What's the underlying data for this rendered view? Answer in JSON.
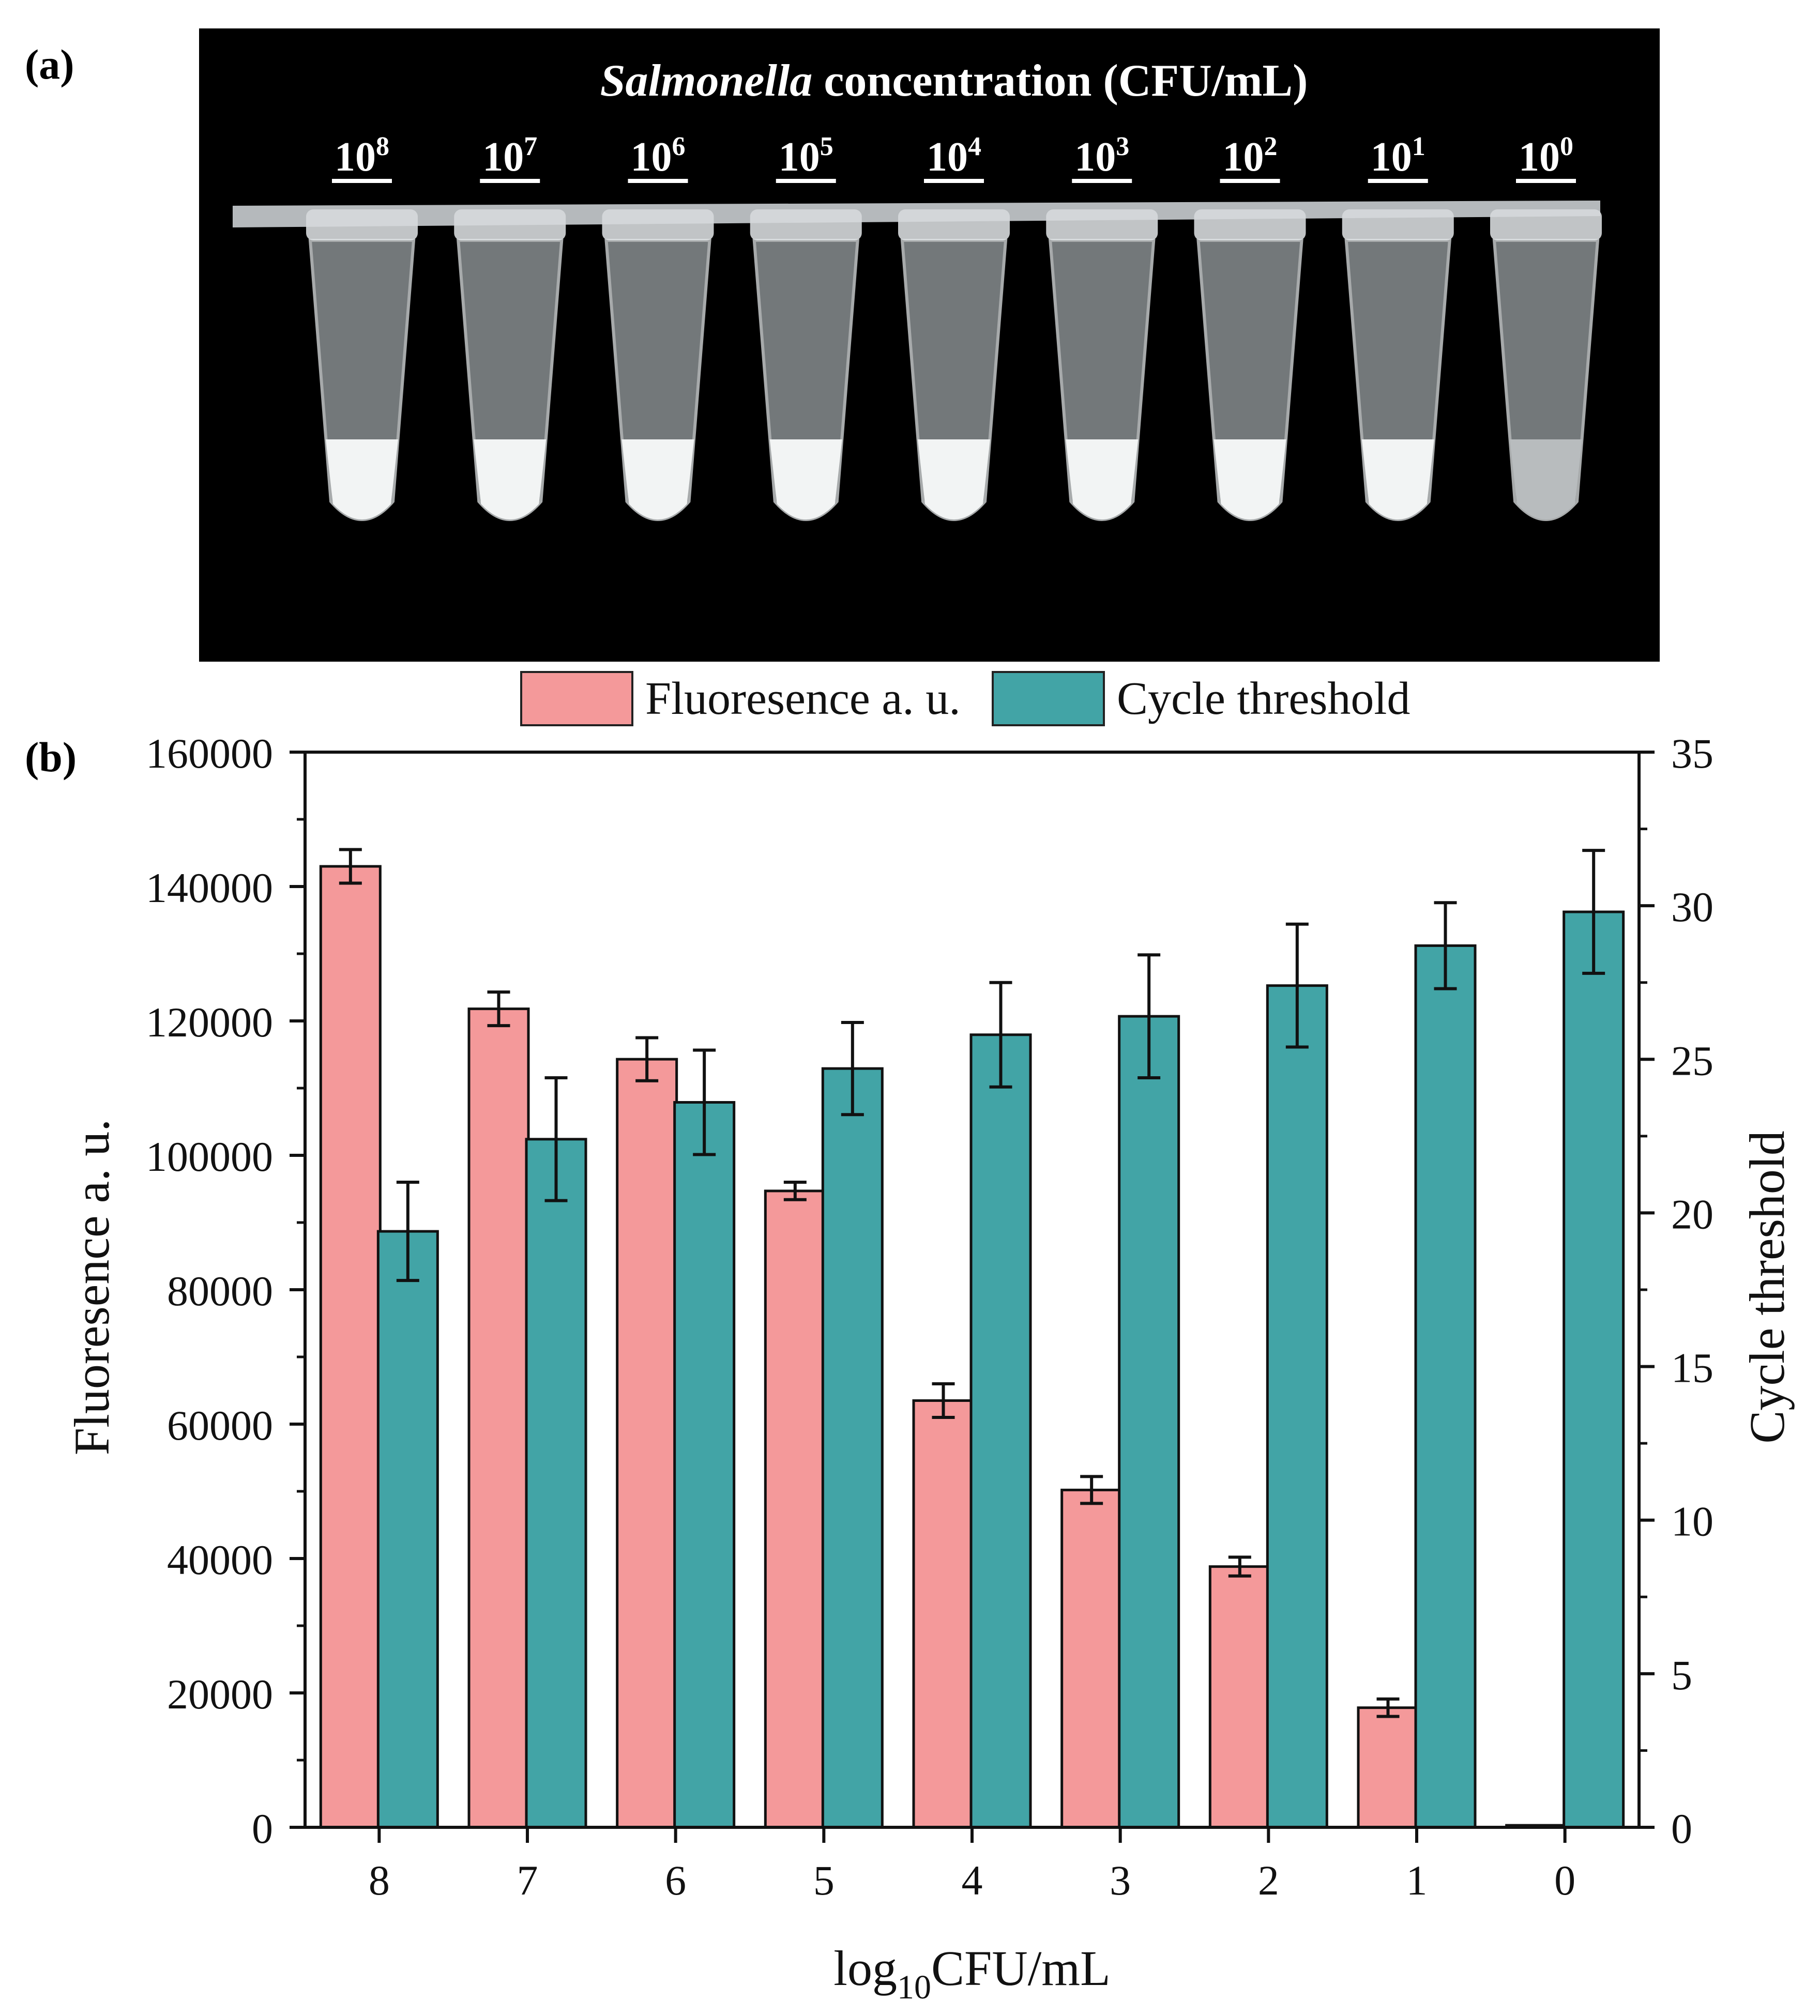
{
  "panel_a": {
    "label": "(a)",
    "title_italic": "Salmonella",
    "title_rest": " concentration (CFU/mL)",
    "tubes": [
      {
        "base": "10",
        "exp": "8"
      },
      {
        "base": "10",
        "exp": "7"
      },
      {
        "base": "10",
        "exp": "6"
      },
      {
        "base": "10",
        "exp": "5"
      },
      {
        "base": "10",
        "exp": "4"
      },
      {
        "base": "10",
        "exp": "3"
      },
      {
        "base": "10",
        "exp": "2"
      },
      {
        "base": "10",
        "exp": "1"
      },
      {
        "base": "10",
        "exp": "0"
      }
    ]
  },
  "panel_b": {
    "label": "(b)"
  },
  "chart_data": {
    "type": "bar",
    "title": "",
    "categories": [
      "8",
      "7",
      "6",
      "5",
      "4",
      "3",
      "2",
      "1",
      "0"
    ],
    "xlabel": {
      "base": "log",
      "sub": "10",
      "rest": "CFU/mL"
    },
    "ylabel_left": "Fluoresence a. u.",
    "ylabel_right": "Cycle threshold",
    "ylim_left": [
      0,
      160000
    ],
    "ylim_right": [
      0,
      35
    ],
    "yticks_left": [
      "0",
      "20000",
      "40000",
      "60000",
      "80000",
      "100000",
      "120000",
      "140000",
      "160000"
    ],
    "yticks_right": [
      "0",
      "5",
      "10",
      "15",
      "20",
      "25",
      "30",
      "35"
    ],
    "legend_position": "top-center",
    "series": [
      {
        "name": "Fluoresence a. u.",
        "axis": "left",
        "color": "#f4999a",
        "values": [
          143000,
          121800,
          114300,
          94700,
          63500,
          50200,
          38800,
          17800,
          300
        ],
        "errors": [
          2500,
          2500,
          3200,
          1300,
          2500,
          2000,
          1400,
          1300,
          0
        ]
      },
      {
        "name": "Cycle threshold",
        "axis": "right",
        "color": "#42a4a6",
        "values": [
          19.4,
          22.4,
          23.6,
          24.7,
          25.8,
          26.4,
          27.4,
          28.7,
          29.8
        ],
        "errors": [
          1.6,
          2.0,
          1.7,
          1.5,
          1.7,
          2.0,
          2.0,
          1.4,
          2.0
        ]
      }
    ]
  }
}
